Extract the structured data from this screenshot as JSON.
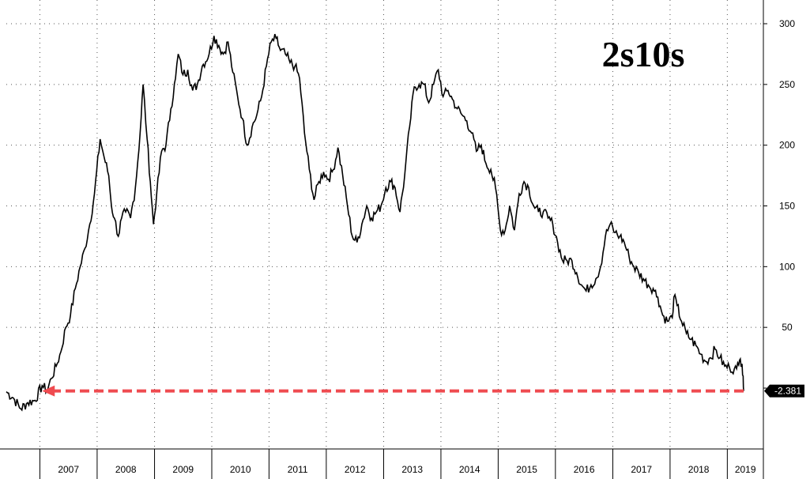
{
  "chart_data": {
    "type": "line",
    "title": "2s10s",
    "xlabel": "",
    "ylabel": "",
    "x_tick_labels": [
      "2007",
      "2008",
      "2009",
      "2010",
      "2011",
      "2012",
      "2013",
      "2014",
      "2015",
      "2016",
      "2017",
      "2018",
      "2019"
    ],
    "y_ticks": [
      50,
      100,
      150,
      200,
      250,
      300
    ],
    "ylim": [
      -50,
      310
    ],
    "xlim": [
      "2006-06-01",
      "2019-04-15"
    ],
    "y_axis_position": "right",
    "grid": true,
    "last_value": -2.381,
    "last_value_label": "-2.381",
    "series": [
      {
        "color": "#000000",
        "points": [
          [
            "2006-06-01",
            -3
          ],
          [
            "2006-07-15",
            -8
          ],
          [
            "2006-09-01",
            -17
          ],
          [
            "2006-10-15",
            -12
          ],
          [
            "2006-12-01",
            -10
          ],
          [
            "2007-01-15",
            2
          ],
          [
            "2007-02-15",
            -2
          ],
          [
            "2007-03-15",
            8
          ],
          [
            "2007-04-15",
            18
          ],
          [
            "2007-05-15",
            30
          ],
          [
            "2007-06-15",
            50
          ],
          [
            "2007-07-15",
            60
          ],
          [
            "2007-08-15",
            82
          ],
          [
            "2007-09-15",
            100
          ],
          [
            "2007-10-15",
            115
          ],
          [
            "2007-11-15",
            135
          ],
          [
            "2007-12-15",
            160
          ],
          [
            "2008-01-20",
            205
          ],
          [
            "2008-02-15",
            190
          ],
          [
            "2008-03-15",
            175
          ],
          [
            "2008-04-01",
            150
          ],
          [
            "2008-04-20",
            140
          ],
          [
            "2008-05-15",
            125
          ],
          [
            "2008-06-05",
            140
          ],
          [
            "2008-07-01",
            145
          ],
          [
            "2008-08-01",
            140
          ],
          [
            "2008-09-01",
            165
          ],
          [
            "2008-10-01",
            210
          ],
          [
            "2008-10-20",
            250
          ],
          [
            "2008-11-15",
            205
          ],
          [
            "2008-12-05",
            170
          ],
          [
            "2008-12-25",
            135
          ],
          [
            "2009-01-15",
            160
          ],
          [
            "2009-02-15",
            195
          ],
          [
            "2009-03-15",
            200
          ],
          [
            "2009-04-15",
            230
          ],
          [
            "2009-05-15",
            255
          ],
          [
            "2009-06-01",
            275
          ],
          [
            "2009-07-01",
            258
          ],
          [
            "2009-08-01",
            262
          ],
          [
            "2009-09-01",
            245
          ],
          [
            "2009-10-01",
            250
          ],
          [
            "2009-11-01",
            265
          ],
          [
            "2009-12-15",
            275
          ],
          [
            "2010-01-15",
            290
          ],
          [
            "2010-02-15",
            282
          ],
          [
            "2010-03-15",
            275
          ],
          [
            "2010-04-15",
            285
          ],
          [
            "2010-05-15",
            260
          ],
          [
            "2010-06-15",
            240
          ],
          [
            "2010-07-15",
            222
          ],
          [
            "2010-08-15",
            200
          ],
          [
            "2010-09-15",
            215
          ],
          [
            "2010-10-15",
            225
          ],
          [
            "2010-11-15",
            240
          ],
          [
            "2010-12-15",
            265
          ],
          [
            "2011-01-15",
            285
          ],
          [
            "2011-02-15",
            288
          ],
          [
            "2011-03-15",
            278
          ],
          [
            "2011-04-15",
            275
          ],
          [
            "2011-05-15",
            268
          ],
          [
            "2011-06-15",
            265
          ],
          [
            "2011-07-15",
            255
          ],
          [
            "2011-08-15",
            210
          ],
          [
            "2011-09-15",
            180
          ],
          [
            "2011-10-15",
            155
          ],
          [
            "2011-11-15",
            170
          ],
          [
            "2011-12-15",
            178
          ],
          [
            "2012-01-15",
            172
          ],
          [
            "2012-02-15",
            180
          ],
          [
            "2012-03-15",
            198
          ],
          [
            "2012-04-15",
            175
          ],
          [
            "2012-05-15",
            150
          ],
          [
            "2012-06-15",
            125
          ],
          [
            "2012-07-15",
            120
          ],
          [
            "2012-08-15",
            135
          ],
          [
            "2012-09-15",
            150
          ],
          [
            "2012-10-15",
            140
          ],
          [
            "2012-11-15",
            145
          ],
          [
            "2012-12-15",
            150
          ],
          [
            "2013-01-15",
            165
          ],
          [
            "2013-02-15",
            170
          ],
          [
            "2013-03-15",
            165
          ],
          [
            "2013-04-15",
            145
          ],
          [
            "2013-05-15",
            175
          ],
          [
            "2013-06-15",
            215
          ],
          [
            "2013-07-15",
            248
          ],
          [
            "2013-08-15",
            250
          ],
          [
            "2013-09-15",
            250
          ],
          [
            "2013-10-15",
            235
          ],
          [
            "2013-11-15",
            250
          ],
          [
            "2013-12-15",
            262
          ],
          [
            "2014-01-15",
            240
          ],
          [
            "2014-02-15",
            245
          ],
          [
            "2014-03-15",
            238
          ],
          [
            "2014-04-15",
            230
          ],
          [
            "2014-05-15",
            225
          ],
          [
            "2014-06-15",
            220
          ],
          [
            "2014-07-15",
            210
          ],
          [
            "2014-08-15",
            195
          ],
          [
            "2014-09-15",
            200
          ],
          [
            "2014-10-15",
            185
          ],
          [
            "2014-11-15",
            180
          ],
          [
            "2014-12-15",
            165
          ],
          [
            "2015-01-15",
            130
          ],
          [
            "2015-02-15",
            130
          ],
          [
            "2015-03-15",
            150
          ],
          [
            "2015-04-15",
            130
          ],
          [
            "2015-05-15",
            160
          ],
          [
            "2015-06-15",
            170
          ],
          [
            "2015-07-15",
            165
          ],
          [
            "2015-08-15",
            150
          ],
          [
            "2015-09-15",
            145
          ],
          [
            "2015-10-15",
            145
          ],
          [
            "2015-11-15",
            140
          ],
          [
            "2015-12-15",
            135
          ],
          [
            "2016-01-15",
            120
          ],
          [
            "2016-02-15",
            105
          ],
          [
            "2016-03-15",
            105
          ],
          [
            "2016-04-15",
            105
          ],
          [
            "2016-05-15",
            95
          ],
          [
            "2016-06-15",
            85
          ],
          [
            "2016-07-15",
            80
          ],
          [
            "2016-08-15",
            85
          ],
          [
            "2016-09-15",
            90
          ],
          [
            "2016-10-15",
            100
          ],
          [
            "2016-11-15",
            125
          ],
          [
            "2016-12-15",
            135
          ],
          [
            "2017-01-15",
            128
          ],
          [
            "2017-02-15",
            125
          ],
          [
            "2017-03-15",
            120
          ],
          [
            "2017-04-15",
            108
          ],
          [
            "2017-05-15",
            100
          ],
          [
            "2017-06-15",
            95
          ],
          [
            "2017-07-15",
            90
          ],
          [
            "2017-08-15",
            85
          ],
          [
            "2017-09-15",
            82
          ],
          [
            "2017-10-15",
            75
          ],
          [
            "2017-11-15",
            60
          ],
          [
            "2017-12-15",
            55
          ],
          [
            "2018-01-15",
            58
          ],
          [
            "2018-01-25",
            75
          ],
          [
            "2018-02-15",
            68
          ],
          [
            "2018-03-15",
            55
          ],
          [
            "2018-04-15",
            45
          ],
          [
            "2018-05-15",
            40
          ],
          [
            "2018-06-15",
            35
          ],
          [
            "2018-07-15",
            28
          ],
          [
            "2018-08-15",
            22
          ],
          [
            "2018-09-15",
            25
          ],
          [
            "2018-10-15",
            32
          ],
          [
            "2018-11-15",
            25
          ],
          [
            "2018-12-15",
            18
          ],
          [
            "2019-01-15",
            17
          ],
          [
            "2019-02-15",
            16
          ],
          [
            "2019-03-01",
            16
          ],
          [
            "2019-03-15",
            19
          ],
          [
            "2019-03-25",
            24
          ],
          [
            "2019-04-05",
            20
          ],
          [
            "2019-04-12",
            10
          ],
          [
            "2019-04-15",
            -2.381
          ]
        ]
      }
    ],
    "reference_arrow": {
      "value": -2.381,
      "from": "2019-04-15",
      "to": "2007-01-15",
      "color": "#ef4b50",
      "style": "dashed"
    }
  }
}
